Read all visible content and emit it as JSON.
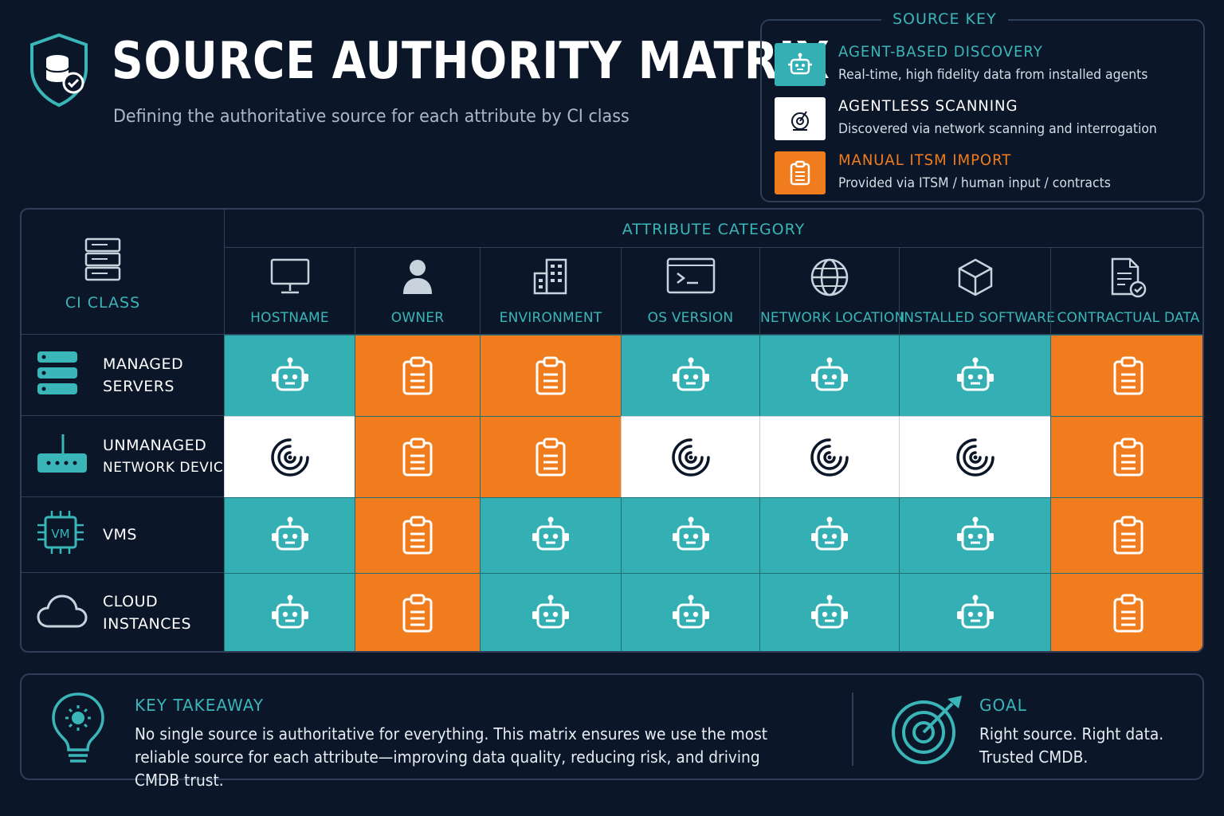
{
  "header": {
    "title": "SOURCE AUTHORITY MATRIX",
    "subtitle": "Defining the authoritative source for each attribute by CI class"
  },
  "source_key": {
    "title": "SOURCE KEY",
    "items": [
      {
        "id": "agent",
        "name": "AGENT-BASED DISCOVERY",
        "desc": "Real-time, high fidelity data from installed agents",
        "color": "#34b0b5",
        "icon": "robot-icon"
      },
      {
        "id": "scan",
        "name": "AGENTLESS SCANNING",
        "desc": "Discovered via network scanning and interrogation",
        "color": "#ffffff",
        "icon": "radar-icon"
      },
      {
        "id": "manual",
        "name": "MANUAL ITSM IMPORT",
        "desc": "Provided via ITSM / human input / contracts",
        "color": "#f07c1e",
        "icon": "clipboard-icon"
      }
    ]
  },
  "matrix": {
    "attribute_category_label": "ATTRIBUTE CATEGORY",
    "ci_class_label": "CI CLASS",
    "columns": [
      {
        "label": "HOSTNAME",
        "icon": "monitor-icon"
      },
      {
        "label": "OWNER",
        "icon": "user-icon"
      },
      {
        "label": "ENVIRONMENT",
        "icon": "building-icon"
      },
      {
        "label": "OS VERSION",
        "icon": "terminal-icon"
      },
      {
        "label": "NETWORK LOCATION",
        "icon": "globe-icon"
      },
      {
        "label": "INSTALLED SOFTWARE",
        "icon": "cube-icon"
      },
      {
        "label": "CONTRACTUAL DATA",
        "icon": "document-check-icon"
      }
    ],
    "rows": [
      {
        "lines": [
          "MANAGED",
          "SERVERS"
        ],
        "icon": "server-icon",
        "cells": [
          "agent",
          "manual",
          "manual",
          "agent",
          "agent",
          "agent",
          "manual"
        ]
      },
      {
        "lines": [
          "UNMANAGED",
          "NETWORK DEVICES"
        ],
        "icon": "router-icon",
        "cells": [
          "scan",
          "manual",
          "manual",
          "scan",
          "scan",
          "scan",
          "manual"
        ]
      },
      {
        "lines": [
          "VMS"
        ],
        "icon": "vm-chip-icon",
        "cells": [
          "agent",
          "manual",
          "agent",
          "agent",
          "agent",
          "agent",
          "manual"
        ]
      },
      {
        "lines": [
          "CLOUD",
          "INSTANCES"
        ],
        "icon": "cloud-icon",
        "cells": [
          "agent",
          "manual",
          "agent",
          "agent",
          "agent",
          "agent",
          "manual"
        ]
      }
    ]
  },
  "takeaway": {
    "title": "KEY TAKEAWAY",
    "text": "No single source is authoritative for everything. This matrix ensures we use the most reliable source for each attribute—improving data quality, reducing risk, and driving CMDB trust."
  },
  "goal": {
    "title": "GOAL",
    "lines": [
      "Right source. Right data.",
      "Trusted CMDB."
    ]
  }
}
